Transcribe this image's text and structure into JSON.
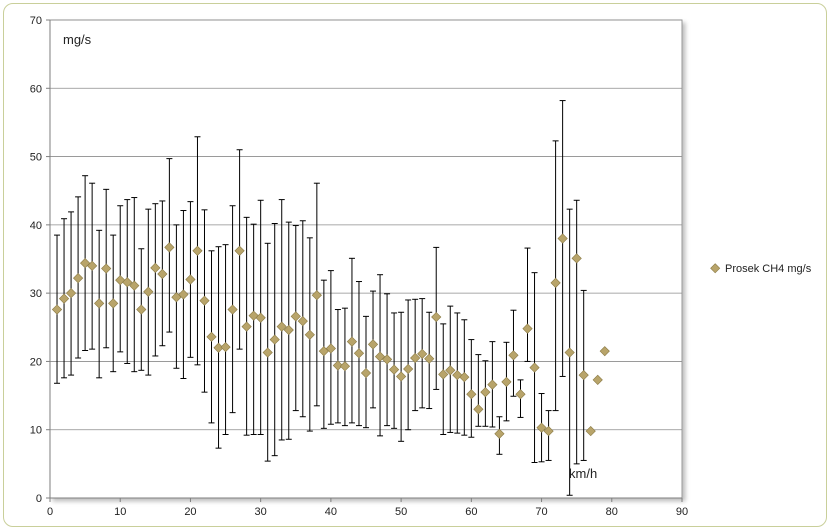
{
  "chart_data": {
    "type": "scatter",
    "title": "",
    "xlabel": "km/h",
    "ylabel": "mg/s",
    "xlim": [
      0,
      90
    ],
    "ylim": [
      0,
      70
    ],
    "x_ticks": [
      0,
      10,
      20,
      30,
      40,
      50,
      60,
      70,
      80,
      90
    ],
    "y_ticks": [
      0,
      10,
      20,
      30,
      40,
      50,
      60,
      70
    ],
    "grid": "horizontal",
    "legend_position": "right",
    "colors": {
      "marker": "#b8a46a",
      "marker_edge": "#8a7a45",
      "error_bar": "#000000",
      "grid": "#8c8c8c",
      "frame": "#c9cf9a"
    },
    "series": [
      {
        "name": "Prosek CH4 mg/s",
        "x": [
          1,
          2,
          3,
          4,
          5,
          6,
          7,
          8,
          9,
          10,
          11,
          12,
          13,
          14,
          15,
          16,
          17,
          18,
          19,
          20,
          21,
          22,
          23,
          24,
          25,
          26,
          27,
          28,
          29,
          30,
          31,
          32,
          33,
          34,
          35,
          36,
          37,
          38,
          39,
          40,
          41,
          42,
          43,
          44,
          45,
          46,
          47,
          48,
          49,
          50,
          51,
          52,
          53,
          54,
          55,
          56,
          57,
          58,
          59,
          60,
          61,
          62,
          63,
          64,
          65,
          66,
          67,
          68,
          69,
          70,
          71,
          72,
          73,
          74,
          75,
          76,
          77,
          78,
          79
        ],
        "y": [
          27.6,
          29.2,
          30.0,
          32.2,
          34.4,
          34.0,
          28.5,
          33.6,
          28.5,
          31.9,
          31.6,
          31.1,
          27.6,
          30.2,
          33.7,
          32.8,
          36.7,
          29.4,
          29.8,
          32.0,
          36.2,
          28.9,
          23.6,
          22.0,
          22.1,
          27.6,
          36.2,
          25.1,
          26.7,
          26.4,
          21.3,
          23.2,
          25.1,
          24.6,
          26.6,
          25.9,
          23.9,
          29.7,
          21.5,
          21.9,
          19.4,
          19.3,
          22.9,
          21.2,
          18.3,
          22.5,
          20.7,
          20.3,
          18.8,
          17.8,
          18.9,
          20.5,
          21.1,
          20.4,
          26.5,
          18.1,
          18.7,
          18.0,
          17.7,
          15.2,
          13.0,
          15.5,
          16.6,
          9.4,
          17.0,
          20.9,
          15.2,
          24.8,
          19.1,
          10.3,
          9.8,
          31.5,
          38.0,
          21.3,
          35.1,
          18.0,
          9.8,
          17.3,
          21.5
        ],
        "error_low": [
          16.8,
          17.6,
          18.0,
          20.5,
          21.6,
          21.8,
          17.6,
          22.0,
          18.5,
          21.4,
          19.7,
          18.5,
          18.7,
          18.0,
          20.8,
          22.3,
          24.3,
          19.0,
          17.5,
          20.6,
          19.5,
          15.5,
          11.0,
          7.3,
          9.3,
          12.5,
          21.8,
          9.2,
          9.3,
          9.3,
          5.4,
          6.2,
          8.5,
          8.6,
          12.8,
          11.9,
          9.8,
          13.5,
          10.2,
          10.8,
          11.0,
          10.6,
          11.0,
          10.6,
          10.3,
          13.2,
          9.1,
          10.6,
          10.2,
          8.3,
          10.0,
          12.8,
          13.2,
          13.1,
          15.9,
          9.3,
          9.6,
          9.5,
          9.2,
          8.9,
          10.5,
          10.5,
          10.4,
          6.4,
          11.3,
          14.9,
          11.8,
          20.0,
          5.2,
          5.3,
          5.5,
          12.8,
          17.8,
          0.4,
          5.0,
          5.5,
          null,
          null,
          null
        ],
        "error_high": [
          38.5,
          40.9,
          41.9,
          44.1,
          47.2,
          46.1,
          39.2,
          45.2,
          38.5,
          42.8,
          43.7,
          44.0,
          36.5,
          42.3,
          43.1,
          43.5,
          49.7,
          40.0,
          42.1,
          43.4,
          52.9,
          42.2,
          36.2,
          36.8,
          37.1,
          42.8,
          51.0,
          41.1,
          40.1,
          43.6,
          37.3,
          40.2,
          43.7,
          40.4,
          39.9,
          40.6,
          38.1,
          46.1,
          31.9,
          33.3,
          27.6,
          27.8,
          35.1,
          31.7,
          26.6,
          30.3,
          32.7,
          29.9,
          27.1,
          27.2,
          29.0,
          29.1,
          29.2,
          27.2,
          36.7,
          25.5,
          28.1,
          27.1,
          26.1,
          23.2,
          21.0,
          20.1,
          22.9,
          11.9,
          22.8,
          27.5,
          17.3,
          36.6,
          33.0,
          15.3,
          12.8,
          52.3,
          58.2,
          42.3,
          43.6,
          30.4,
          null,
          null,
          null
        ]
      }
    ]
  }
}
